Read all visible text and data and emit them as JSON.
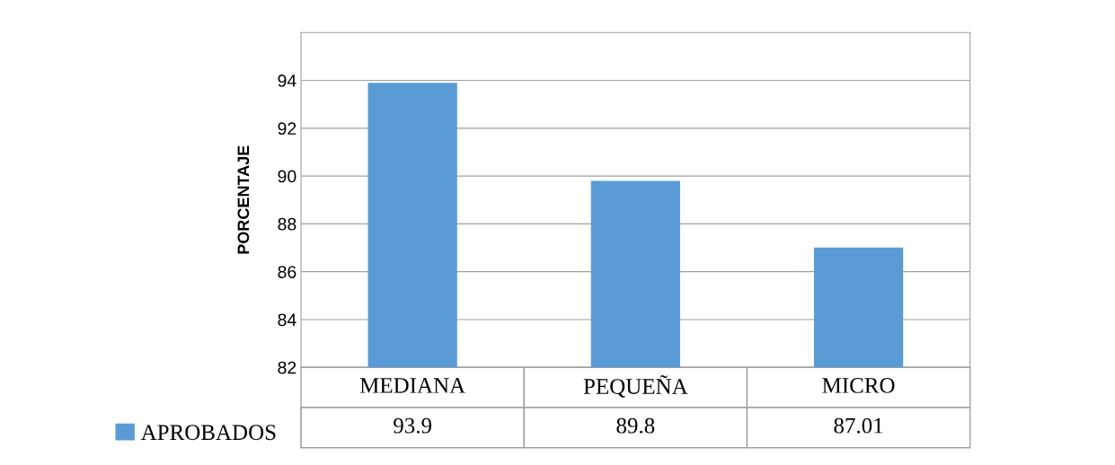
{
  "chart_data": {
    "type": "bar",
    "ylabel": "PORCENTAJE",
    "categories": [
      "MEDIANA",
      "PEQUEÑA",
      "MICRO"
    ],
    "series": [
      {
        "name": "APROBADOS",
        "color": "#5b9bd5",
        "values": [
          93.9,
          89.8,
          87.01
        ]
      }
    ],
    "ylim": [
      82,
      96
    ],
    "yticks": [
      82,
      84,
      86,
      88,
      90,
      92,
      94
    ],
    "grid": "y",
    "data_labels": true,
    "legend": "bottom"
  }
}
